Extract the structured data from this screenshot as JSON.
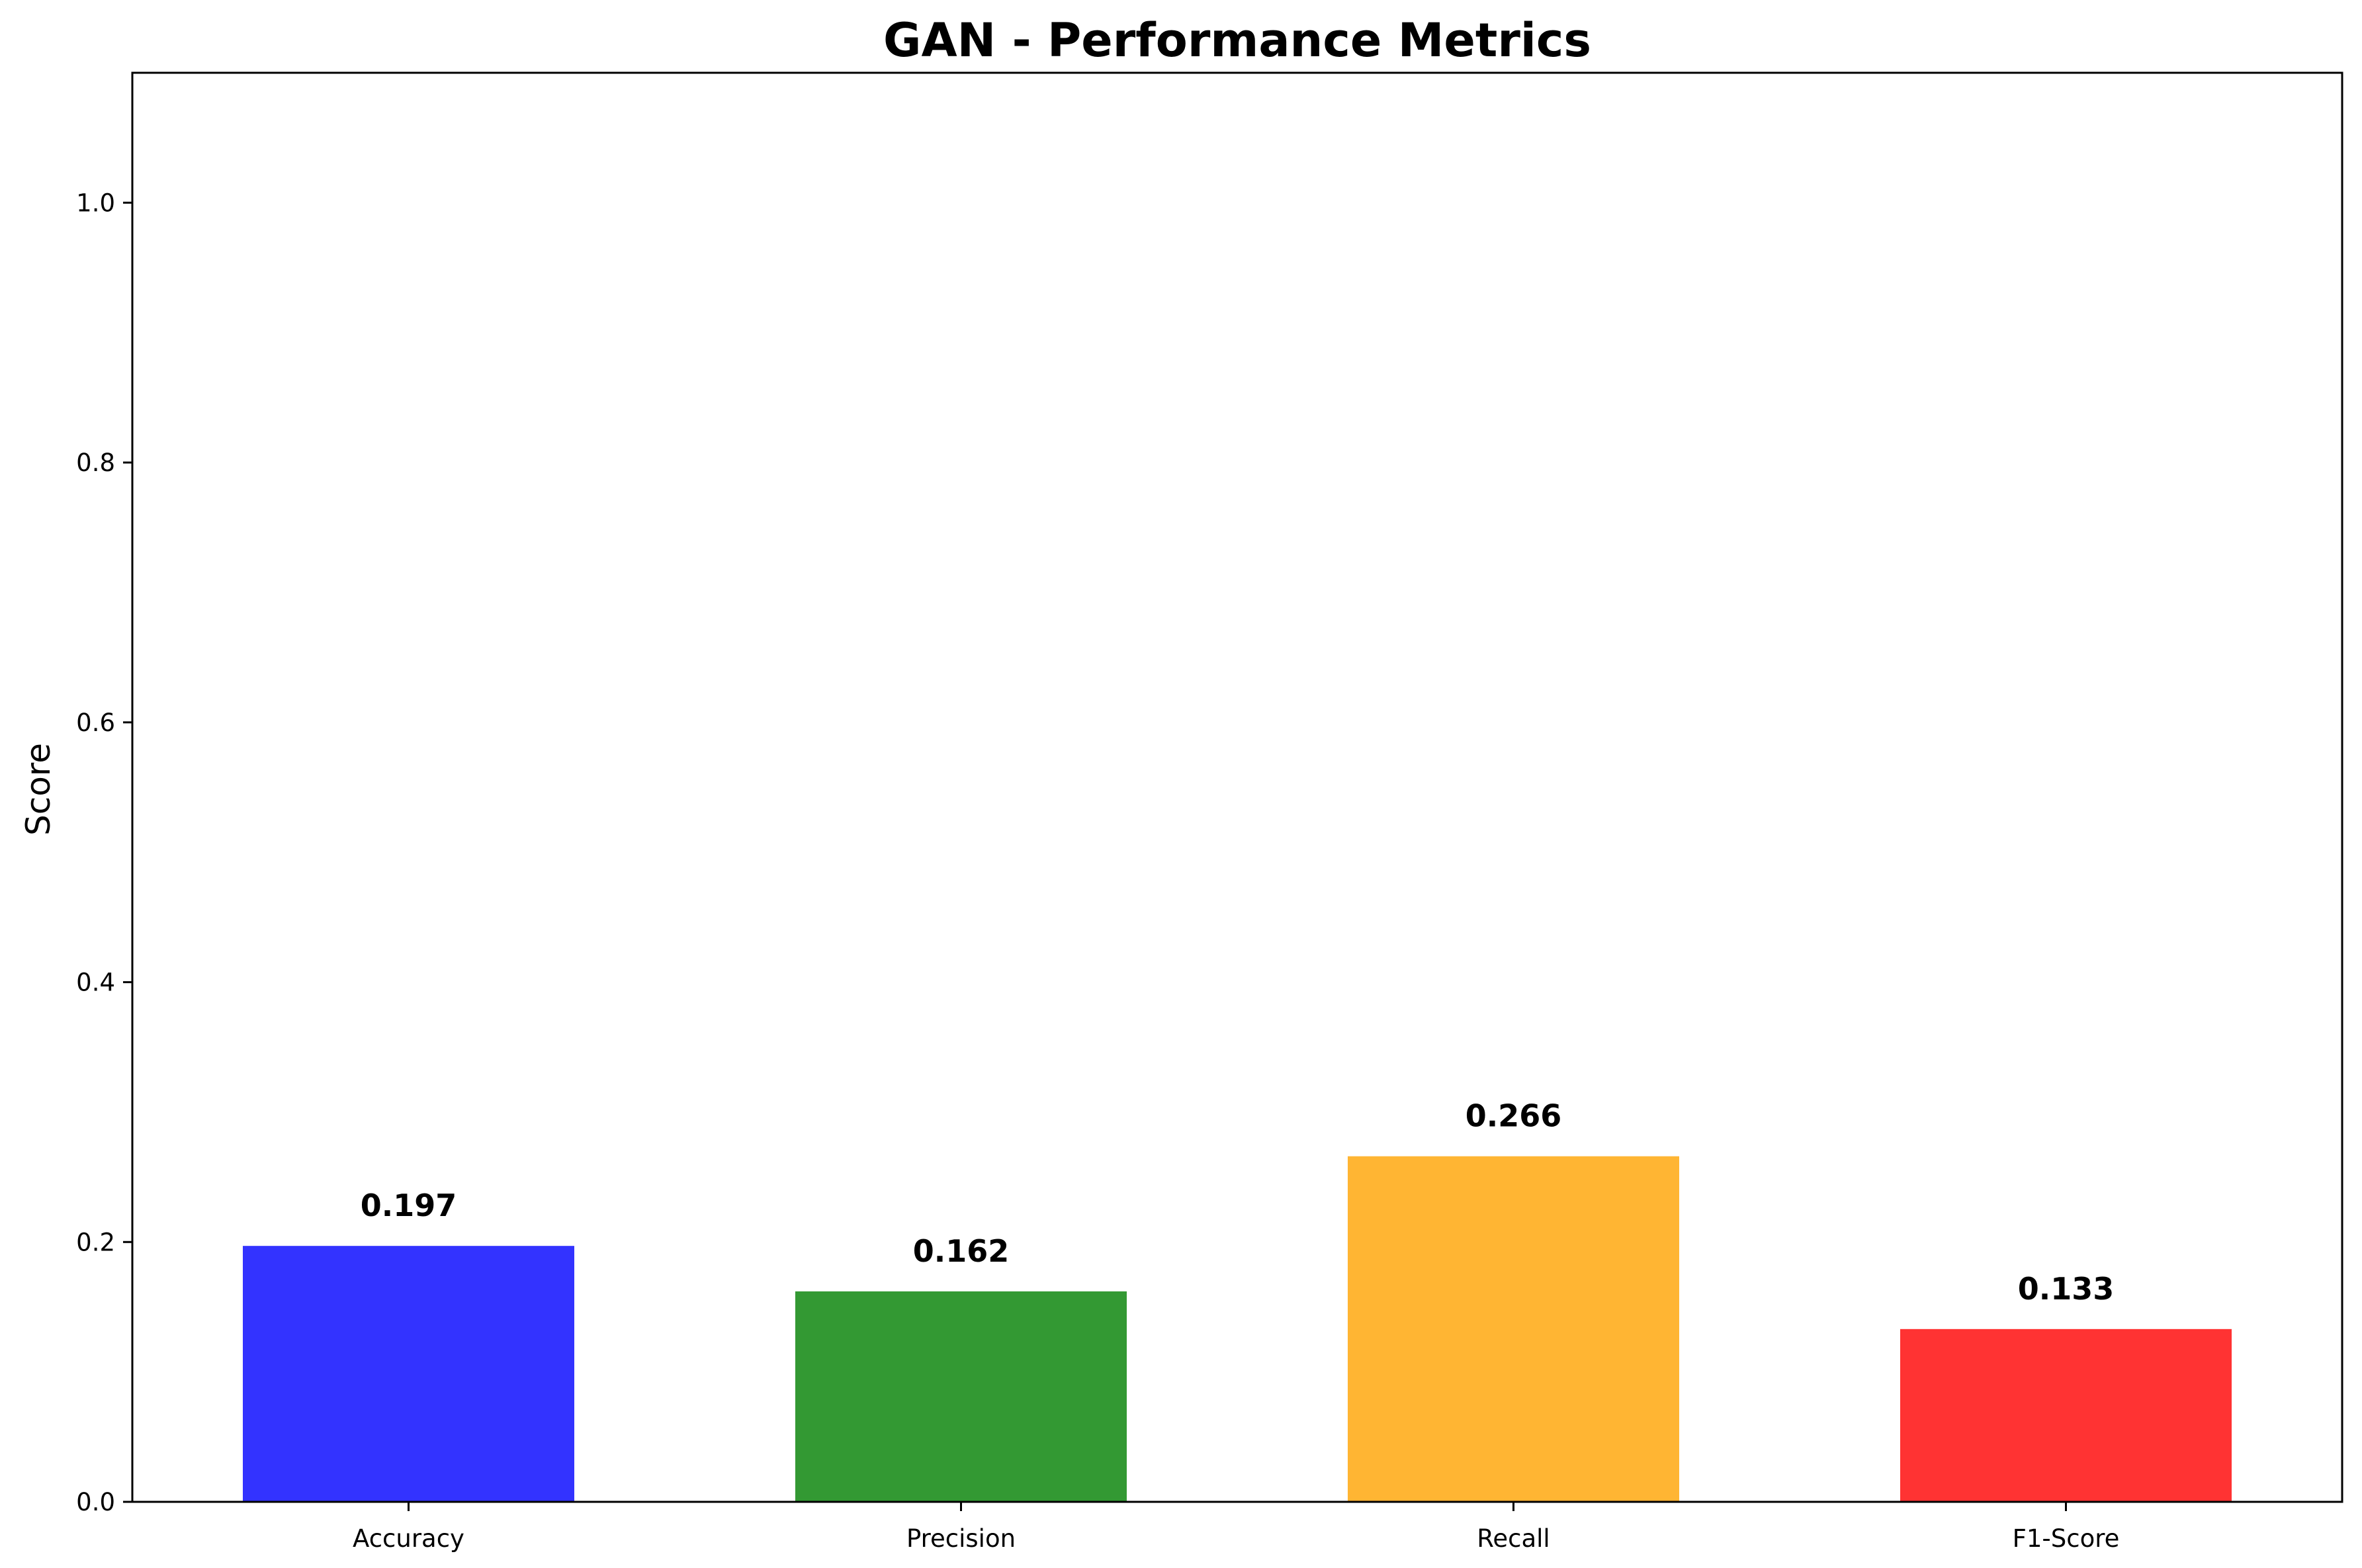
{
  "chart_data": {
    "type": "bar",
    "title": "GAN - Performance Metrics",
    "xlabel": "",
    "ylabel": "Score",
    "categories": [
      "Accuracy",
      "Precision",
      "Recall",
      "F1-Score"
    ],
    "values": [
      0.197,
      0.162,
      0.266,
      0.133
    ],
    "value_labels": [
      "0.197",
      "0.162",
      "0.266",
      "0.133"
    ],
    "colors": [
      "#3333ff",
      "#339933",
      "#ffb533",
      "#ff3333"
    ],
    "ylim": [
      0,
      1.1
    ],
    "yticks": [
      0.0,
      0.2,
      0.4,
      0.6,
      0.8,
      1.0
    ],
    "ytick_labels": [
      "0.0",
      "0.2",
      "0.4",
      "0.6",
      "0.8",
      "1.0"
    ],
    "grid": false,
    "legend": "none"
  }
}
